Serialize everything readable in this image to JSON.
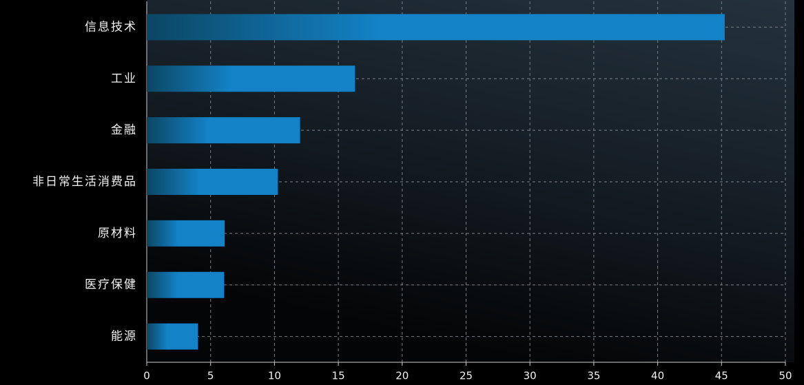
{
  "chart_data": {
    "type": "bar",
    "orientation": "horizontal",
    "categories": [
      "信息技术",
      "工业",
      "金融",
      "非日常生活消费品",
      "原材料",
      "医疗保健",
      "能源"
    ],
    "values": [
      45.25,
      16.3,
      12.0,
      10.25,
      6.1,
      6.05,
      4.0
    ],
    "color": "#1382c6",
    "xlim": [
      0,
      50
    ],
    "xticks": [
      0,
      5,
      10,
      15,
      20,
      25,
      30,
      35,
      40,
      45,
      50
    ],
    "grid": true
  }
}
